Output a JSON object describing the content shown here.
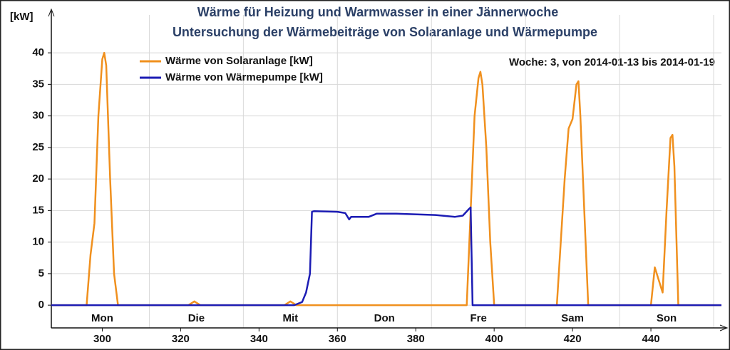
{
  "chart_data": {
    "type": "line",
    "title": "Wärme für Heizung und Warmwasser in einer Jännerwoche",
    "subtitle": "Untersuchung der Wärmebeiträge von Solaranlage und Wärmepumpe",
    "y_label": "[kW]",
    "annotation": "Woche: 3, von 2014-01-13 bis 2014-01-19",
    "xlim": [
      287,
      458
    ],
    "ylim": [
      -3.6,
      46
    ],
    "xticks": [
      300,
      320,
      340,
      360,
      380,
      400,
      420,
      440
    ],
    "yticks": [
      0,
      5,
      10,
      15,
      20,
      25,
      30,
      35,
      40
    ],
    "xgrid": [
      312,
      336,
      360,
      384,
      408,
      432,
      456
    ],
    "day_labels": [
      {
        "value": 300,
        "label": "Mon"
      },
      {
        "value": 324,
        "label": "Die"
      },
      {
        "value": 348,
        "label": "Mit"
      },
      {
        "value": 372,
        "label": "Don"
      },
      {
        "value": 396,
        "label": "Fre"
      },
      {
        "value": 420,
        "label": "Sam"
      },
      {
        "value": 444,
        "label": "Son"
      }
    ],
    "grid": true,
    "legend": "upper left",
    "series": [
      {
        "name": "Wärme von Solaranlage [kW]",
        "color": "#f0901e",
        "x": [
          287,
          296,
          297,
          298,
          299,
          300,
          300.5,
          301,
          302,
          303,
          304,
          322,
          323.5,
          325,
          346.5,
          348,
          349.5,
          393,
          394,
          395,
          396,
          396.5,
          397,
          398,
          399,
          400,
          416,
          418,
          419,
          420,
          421,
          421.5,
          422,
          423,
          424,
          440,
          441,
          442,
          443,
          444,
          445,
          445.5,
          446,
          447,
          458
        ],
        "values": [
          0,
          0,
          8,
          13,
          30,
          39,
          40,
          38,
          20,
          5,
          0,
          0,
          0.6,
          0,
          0,
          0.6,
          0,
          0,
          15,
          30,
          36,
          37,
          35,
          25,
          10,
          0,
          0,
          20,
          28,
          29.5,
          35,
          35.5,
          30,
          15,
          0,
          0,
          6,
          4,
          2,
          15,
          26.5,
          27,
          22,
          0,
          0
        ]
      },
      {
        "name": "Wärme von Wärmepumpe [kW]",
        "color": "#1c1cb4",
        "x": [
          287,
          349,
          351,
          352,
          353,
          353.5,
          354,
          360,
          362,
          363,
          363.5,
          368,
          370,
          375,
          385,
          390,
          392,
          393.5,
          394,
          394.5,
          458
        ],
        "values": [
          0,
          0,
          0.5,
          2,
          5,
          14.8,
          14.9,
          14.8,
          14.6,
          13.6,
          14,
          14,
          14.5,
          14.5,
          14.3,
          14,
          14.2,
          15.2,
          15.5,
          0,
          0
        ]
      }
    ]
  }
}
